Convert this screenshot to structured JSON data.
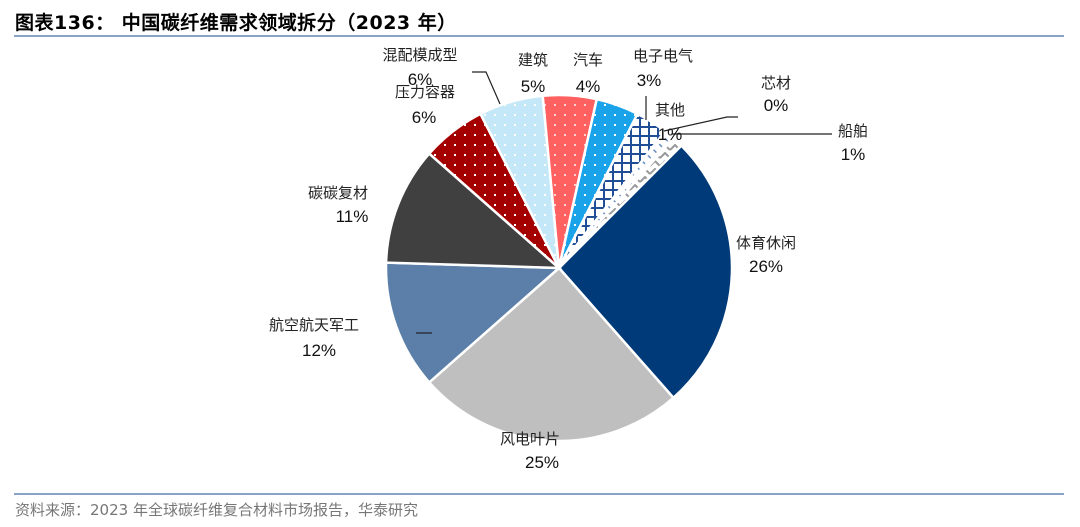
{
  "header": {
    "title": "图表136： 中国碳纤维需求领域拆分（2023 年）"
  },
  "footer": {
    "source": "资料来源：2023 年全球碳纤维复合材料市场报告，华泰研究"
  },
  "chart_data": {
    "type": "pie",
    "title": "中国碳纤维需求领域拆分（2023 年）",
    "unit": "%",
    "start_angle_deg": 45,
    "direction": "clockwise",
    "slices": [
      {
        "label": "体育休闲",
        "value": 26,
        "pct_label": "26%",
        "color": "#003A78",
        "pattern": "solid"
      },
      {
        "label": "风电叶片",
        "value": 25,
        "pct_label": "25%",
        "color": "#BFBFBF",
        "pattern": "solid"
      },
      {
        "label": "航空航天军工",
        "value": 12,
        "pct_label": "12%",
        "color": "#5B7FA9",
        "pattern": "solid"
      },
      {
        "label": "碳碳复材",
        "value": 11,
        "pct_label": "11%",
        "color": "#404040",
        "pattern": "solid"
      },
      {
        "label": "压力容器",
        "value": 6,
        "pct_label": "6%",
        "color": "#A50000",
        "pattern": "dots"
      },
      {
        "label": "混配模成型",
        "value": 6,
        "pct_label": "6%",
        "color": "#C5E8F8",
        "pattern": "dots"
      },
      {
        "label": "建筑",
        "value": 5,
        "pct_label": "5%",
        "color": "#FF6060",
        "pattern": "dots"
      },
      {
        "label": "汽车",
        "value": 4,
        "pct_label": "4%",
        "color": "#1AA3E8",
        "pattern": "dots"
      },
      {
        "label": "电子电气",
        "value": 3,
        "pct_label": "3%",
        "color": "#1F4E96",
        "pattern": "crosshatch"
      },
      {
        "label": "其他",
        "value": 1,
        "pct_label": "1%",
        "color": "#6A8FC4",
        "pattern": "dashes"
      },
      {
        "label": "船舶",
        "value": 1,
        "pct_label": "1%",
        "color": "#999999",
        "pattern": "zigzag"
      },
      {
        "label": "芯材",
        "value": 0,
        "pct_label": "0%",
        "color": "#777777",
        "pattern": "solid"
      }
    ]
  }
}
